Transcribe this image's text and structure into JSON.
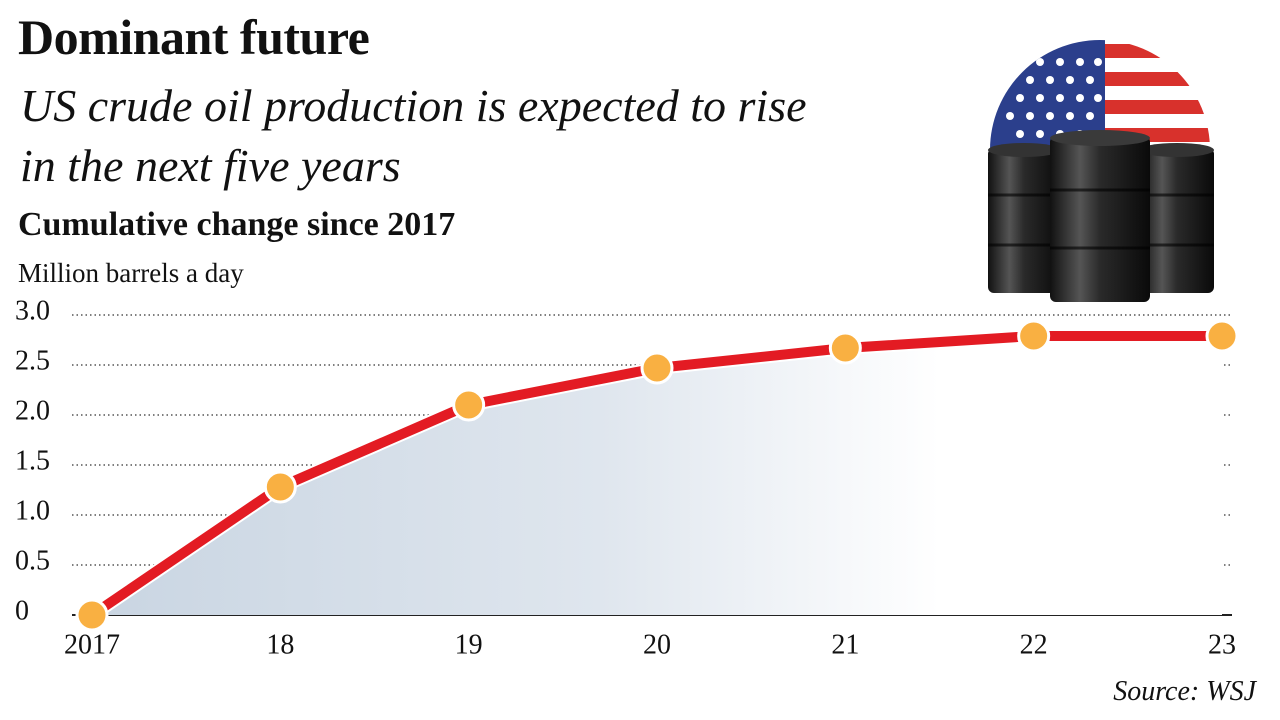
{
  "chart_data": {
    "type": "line",
    "title": "Dominant future",
    "subtitle": "US crude oil production is expected to rise in the next five years",
    "heading": "Cumulative change since 2017",
    "y_label": "Million barrels a day",
    "source": "Source: WSJ",
    "categories": [
      "2017",
      "18",
      "19",
      "20",
      "21",
      "22",
      "23"
    ],
    "values": [
      0,
      1.28,
      2.1,
      2.47,
      2.67,
      2.79,
      2.79
    ],
    "color": "#e31b23",
    "marker_color": "#f9b042",
    "ylim": [
      0,
      3
    ],
    "yticks": [
      0,
      0.5,
      {
        "value": 1,
        "label": "1.0"
      },
      1.5,
      {
        "value": 2,
        "label": "2.0"
      },
      2.5,
      {
        "value": 3,
        "label": "3.0"
      }
    ],
    "grid": true
  }
}
